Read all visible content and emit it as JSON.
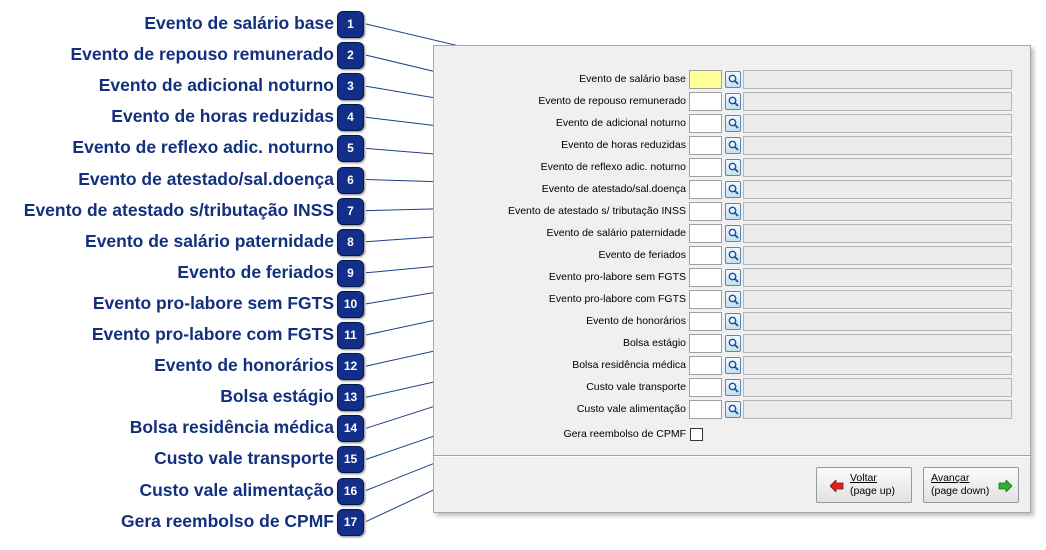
{
  "callouts": [
    {
      "number": "1",
      "label": "Evento de salário base"
    },
    {
      "number": "2",
      "label": "Evento de repouso remunerado"
    },
    {
      "number": "3",
      "label": "Evento de adicional noturno"
    },
    {
      "number": "4",
      "label": "Evento de horas reduzidas"
    },
    {
      "number": "5",
      "label": "Evento de reflexo adic. noturno"
    },
    {
      "number": "6",
      "label": "Evento de atestado/sal.doença"
    },
    {
      "number": "7",
      "label": "Evento de atestado s/tributação INSS"
    },
    {
      "number": "8",
      "label": "Evento de salário paternidade"
    },
    {
      "number": "9",
      "label": "Evento de feriados"
    },
    {
      "number": "10",
      "label": "Evento pro-labore sem FGTS"
    },
    {
      "number": "11",
      "label": "Evento pro-labore com FGTS"
    },
    {
      "number": "12",
      "label": "Evento de honorários"
    },
    {
      "number": "13",
      "label": "Bolsa estágio"
    },
    {
      "number": "14",
      "label": "Bolsa residência médica"
    },
    {
      "number": "15",
      "label": "Custo vale transporte"
    },
    {
      "number": "16",
      "label": "Custo vale alimentação"
    },
    {
      "number": "17",
      "label": "Gera reembolso de CPMF"
    }
  ],
  "form": {
    "fields": [
      {
        "label": "Evento de salário base",
        "code": "",
        "description": ""
      },
      {
        "label": "Evento de repouso remunerado",
        "code": "",
        "description": ""
      },
      {
        "label": "Evento de adicional noturno",
        "code": "",
        "description": ""
      },
      {
        "label": "Evento de horas reduzidas",
        "code": "",
        "description": ""
      },
      {
        "label": "Evento de reflexo adic. noturno",
        "code": "",
        "description": ""
      },
      {
        "label": "Evento de atestado/sal.doença",
        "code": "",
        "description": ""
      },
      {
        "label": "Evento de atestado s/ tributação INSS",
        "code": "",
        "description": ""
      },
      {
        "label": "Evento de salário paternidade",
        "code": "",
        "description": ""
      },
      {
        "label": "Evento de feriados",
        "code": "",
        "description": ""
      },
      {
        "label": "Evento pro-labore sem FGTS",
        "code": "",
        "description": ""
      },
      {
        "label": "Evento pro-labore com FGTS",
        "code": "",
        "description": ""
      },
      {
        "label": "Evento de honorários",
        "code": "",
        "description": ""
      },
      {
        "label": "Bolsa estágio",
        "code": "",
        "description": ""
      },
      {
        "label": "Bolsa residência médica",
        "code": "",
        "description": ""
      },
      {
        "label": "Custo vale transporte",
        "code": "",
        "description": ""
      },
      {
        "label": "Custo vale alimentação",
        "code": "",
        "description": ""
      }
    ],
    "checkbox": {
      "label": "Gera reembolso de CPMF",
      "checked": false
    }
  },
  "buttons": {
    "back": {
      "line1": "Voltar",
      "line2": "(page up)",
      "icon": "arrow-left-icon"
    },
    "next": {
      "line1": "Avançar",
      "line2": "(page down)",
      "icon": "arrow-right-icon"
    }
  },
  "colors": {
    "callout_text": "#12307e",
    "badge": "#122e88",
    "active_field": "#ffff99",
    "back_arrow": "#e02020",
    "next_arrow": "#2bb52b"
  }
}
